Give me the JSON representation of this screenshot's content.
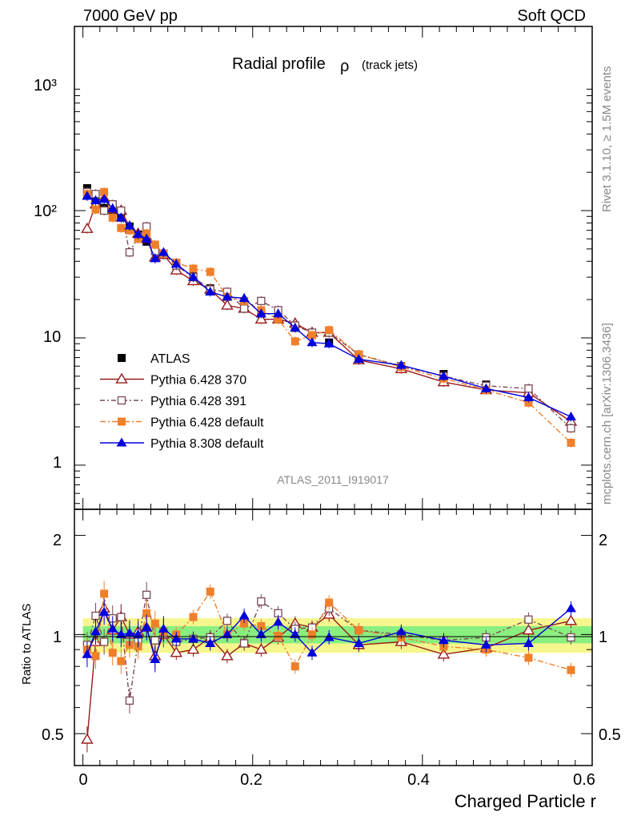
{
  "header": {
    "left_title": "7000 GeV pp",
    "right_title": "Soft QCD",
    "plot_title": "Radial profile",
    "plot_title_symbol": "ρ",
    "plot_title_sub": "(track jets)",
    "analysis_id": "ATLAS_2011_I919017",
    "side_rivet": "Rivet 3.1.10, ≥ 1.5M events",
    "side_mcplots": "mcplots.cern.ch [arXiv:1306.3436]"
  },
  "axes": {
    "xlabel": "Charged Particle r",
    "ratio_ylabel": "Ratio to ATLAS",
    "main_y_ticks": [
      "1",
      "10",
      "10²",
      "10³"
    ],
    "ratio_y_ticks": [
      "0.5",
      "1",
      "2"
    ],
    "x_ticks": [
      "0",
      "0.2",
      "0.4",
      "0.6"
    ]
  },
  "legend": [
    {
      "label": "ATLAS",
      "color": "#000000",
      "marker": "square-filled"
    },
    {
      "label": "Pythia 6.428 370",
      "color": "#9b1b1b",
      "marker": "triangle-open"
    },
    {
      "label": "Pythia 6.428 391",
      "color": "#7a4a55",
      "marker": "square-open"
    },
    {
      "label": "Pythia 6.428 default",
      "color": "#f07f2a",
      "marker": "square-filled"
    },
    {
      "label": "Pythia 8.308 default",
      "color": "#0000dd",
      "marker": "triangle-filled"
    }
  ],
  "chart_data": {
    "type": "scatter",
    "xlim": [
      -0.01,
      0.6
    ],
    "ylim": [
      0.45,
      2800
    ],
    "yscale": "log",
    "ratio_ylim": [
      0.4,
      2.4
    ],
    "ratio_yscale": "log",
    "x": [
      0.005,
      0.015,
      0.025,
      0.035,
      0.045,
      0.055,
      0.065,
      0.075,
      0.085,
      0.095,
      0.11,
      0.13,
      0.15,
      0.17,
      0.19,
      0.21,
      0.23,
      0.25,
      0.27,
      0.29,
      0.325,
      0.375,
      0.425,
      0.475,
      0.525,
      0.575
    ],
    "series": [
      {
        "name": "ATLAS",
        "values": [
          150,
          118,
          105,
          100,
          88,
          75,
          65,
          57,
          50,
          45,
          39,
          31,
          24.5,
          21,
          18,
          15.5,
          14.2,
          12,
          10.5,
          9.2,
          7.2,
          6,
          5.2,
          4.3,
          3.6,
          2.0
        ]
      },
      {
        "name": "Pythia 6.428 370",
        "values": [
          72,
          112,
          125,
          103,
          100,
          75,
          66,
          60,
          43,
          45,
          34,
          28,
          24,
          18,
          17,
          14,
          14,
          13,
          11,
          11,
          6.7,
          5.7,
          4.5,
          3.9,
          3.7,
          2.2
        ]
      },
      {
        "name": "Pythia 6.428 391",
        "values": [
          140,
          135,
          100,
          112,
          100,
          47,
          62,
          75,
          48,
          46,
          37,
          30,
          24,
          23,
          17,
          19.5,
          16.5,
          12.5,
          11,
          11,
          7.4,
          6,
          5,
          4.2,
          4.0,
          1.95
        ]
      },
      {
        "name": "Pythia 6.428 default",
        "values": [
          135,
          102,
          140,
          88,
          73,
          70,
          60,
          66,
          54,
          46,
          39,
          35,
          33,
          21,
          19.5,
          16.5,
          14,
          9.4,
          10.5,
          11.5,
          7.4,
          5.9,
          4.8,
          3.9,
          3.1,
          1.5
        ]
      },
      {
        "name": "Pythia 8.308 default",
        "values": [
          130,
          120,
          123,
          104,
          88,
          76,
          65,
          60,
          42,
          47,
          38,
          30,
          23,
          21,
          20.5,
          15.5,
          15.5,
          12,
          9.2,
          9,
          6.8,
          6.1,
          5,
          4,
          3.4,
          2.4
        ]
      }
    ],
    "ratio_series": [
      {
        "name": "Pythia 6.428 370",
        "values": [
          0.48,
          0.95,
          1.2,
          1.03,
          1.13,
          1.0,
          1.02,
          1.05,
          0.86,
          1.0,
          0.88,
          0.9,
          0.98,
          0.86,
          0.94,
          0.9,
          0.98,
          1.08,
          1.05,
          1.15,
          0.93,
          0.95,
          0.87,
          0.91,
          1.03,
          1.1
        ]
      },
      {
        "name": "Pythia 6.428 391",
        "values": [
          0.93,
          1.14,
          0.95,
          1.12,
          1.13,
          0.63,
          0.95,
          1.32,
          0.96,
          1.02,
          0.95,
          0.97,
          0.98,
          1.1,
          0.94,
          1.26,
          1.16,
          1.04,
          1.05,
          1.2,
          1.03,
          1.0,
          0.96,
          0.98,
          1.11,
          0.98
        ]
      },
      {
        "name": "Pythia 6.428 default",
        "values": [
          0.9,
          0.86,
          1.33,
          0.88,
          0.83,
          0.93,
          0.92,
          1.16,
          1.08,
          1.02,
          1.0,
          1.13,
          1.35,
          1.0,
          1.08,
          1.06,
          0.99,
          0.8,
          1.0,
          1.25,
          1.03,
          0.98,
          0.92,
          0.9,
          0.85,
          0.78
        ]
      },
      {
        "name": "Pythia 8.308 default",
        "values": [
          0.87,
          1.02,
          1.17,
          1.04,
          1.0,
          1.01,
          1.0,
          1.05,
          0.84,
          1.04,
          0.97,
          0.97,
          0.94,
          1.0,
          1.14,
          1.0,
          1.09,
          1.0,
          0.88,
          0.98,
          0.94,
          1.02,
          0.96,
          0.93,
          0.94,
          1.2
        ]
      }
    ]
  }
}
